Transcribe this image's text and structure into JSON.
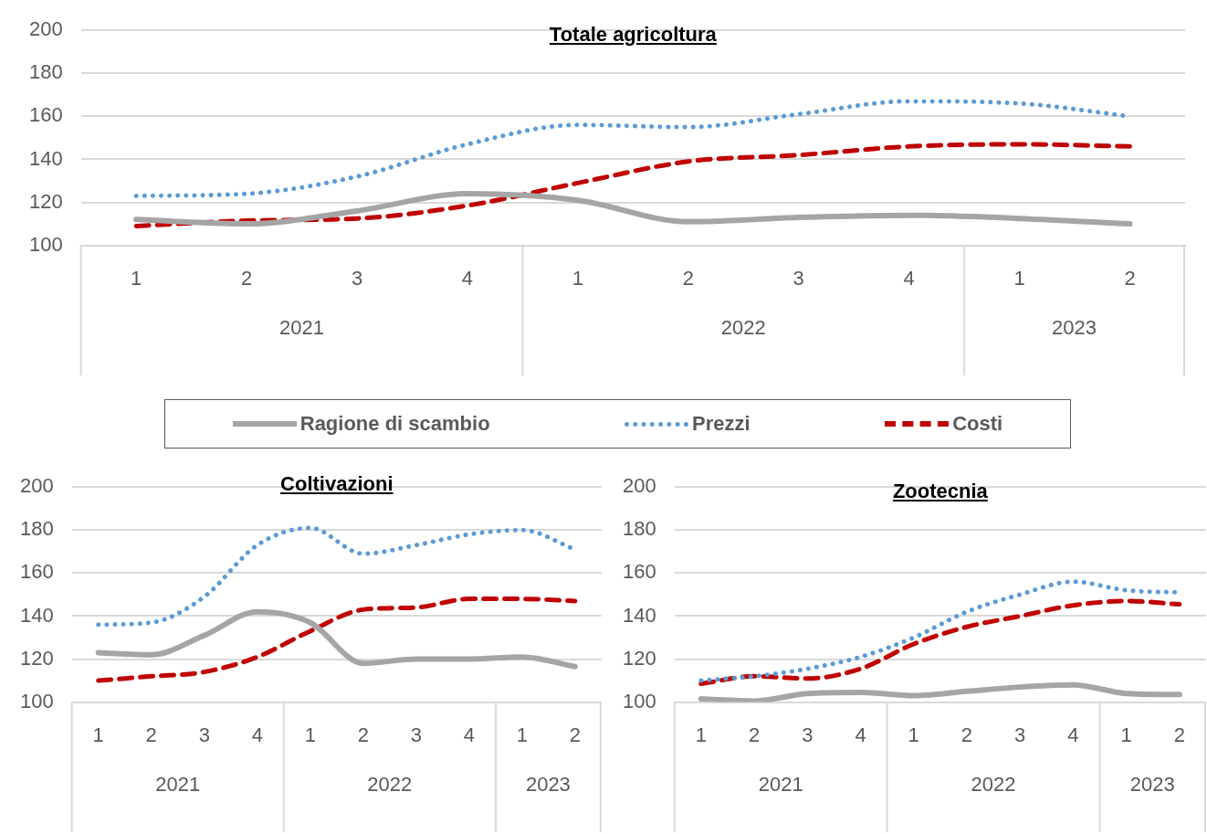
{
  "chart_data": [
    {
      "type": "line",
      "title": "Totale agricoltura",
      "categories": [
        "1",
        "2",
        "3",
        "4",
        "1",
        "2",
        "3",
        "4",
        "1",
        "2"
      ],
      "annotations": [
        "2021",
        "2022",
        "2023"
      ],
      "ylim": [
        100,
        200
      ],
      "yticks": [
        100,
        120,
        140,
        160,
        180,
        200
      ],
      "grid": "y",
      "legend": "bottom",
      "series": [
        {
          "name": "Ragione di scambio",
          "color": "#a5a5a5",
          "line_style": "solid",
          "values": [
            112,
            110,
            116,
            124,
            121,
            111,
            113,
            114,
            112.5,
            110
          ]
        },
        {
          "name": "Prezzi",
          "color": "#5b9bd5",
          "line_style": "dotted",
          "values": [
            123,
            124,
            132,
            147,
            156,
            155,
            161,
            167,
            166,
            160
          ]
        },
        {
          "name": "Costi",
          "color": "#c00000",
          "line_style": "dashed",
          "values": [
            109,
            111.5,
            112.5,
            118.5,
            129,
            139,
            142,
            146,
            147,
            146
          ]
        }
      ]
    },
    {
      "type": "line",
      "title": "Coltivazioni",
      "categories": [
        "1",
        "2",
        "3",
        "4",
        "1",
        "2",
        "3",
        "4",
        "1",
        "2"
      ],
      "annotations": [
        "2021",
        "2022",
        "2023"
      ],
      "ylim": [
        100,
        200
      ],
      "yticks": [
        100,
        120,
        140,
        160,
        180,
        200
      ],
      "grid": "y",
      "series": [
        {
          "color": "#a5a5a5",
          "line_style": "solid",
          "values": [
            123,
            122,
            131,
            142,
            137,
            118,
            120,
            120,
            121,
            116.5
          ]
        },
        {
          "color": "#5b9bd5",
          "line_style": "dotted",
          "values": [
            136,
            137,
            149,
            173,
            181,
            169,
            173,
            178,
            180,
            171
          ]
        },
        {
          "color": "#c00000",
          "line_style": "dashed",
          "values": [
            110,
            112,
            114,
            121,
            133,
            143,
            144,
            148,
            148,
            147
          ]
        }
      ]
    },
    {
      "type": "line",
      "title": "Zootecnia",
      "categories": [
        "1",
        "2",
        "3",
        "4",
        "1",
        "2",
        "3",
        "4",
        "1",
        "2"
      ],
      "annotations": [
        "2021",
        "2022",
        "2023"
      ],
      "ylim": [
        100,
        200
      ],
      "yticks": [
        100,
        120,
        140,
        160,
        180,
        200
      ],
      "grid": "y",
      "series": [
        {
          "color": "#a5a5a5",
          "line_style": "solid",
          "values": [
            101.5,
            100.5,
            104,
            104.5,
            103,
            105,
            107,
            108,
            104,
            103.5
          ]
        },
        {
          "color": "#5b9bd5",
          "line_style": "dotted",
          "values": [
            110,
            112,
            115.5,
            121,
            130,
            142,
            150,
            156,
            152,
            151
          ]
        },
        {
          "color": "#c00000",
          "line_style": "dashed",
          "values": [
            108.5,
            112,
            111,
            115.5,
            127,
            135,
            140,
            145,
            147,
            145.5
          ]
        }
      ]
    }
  ]
}
